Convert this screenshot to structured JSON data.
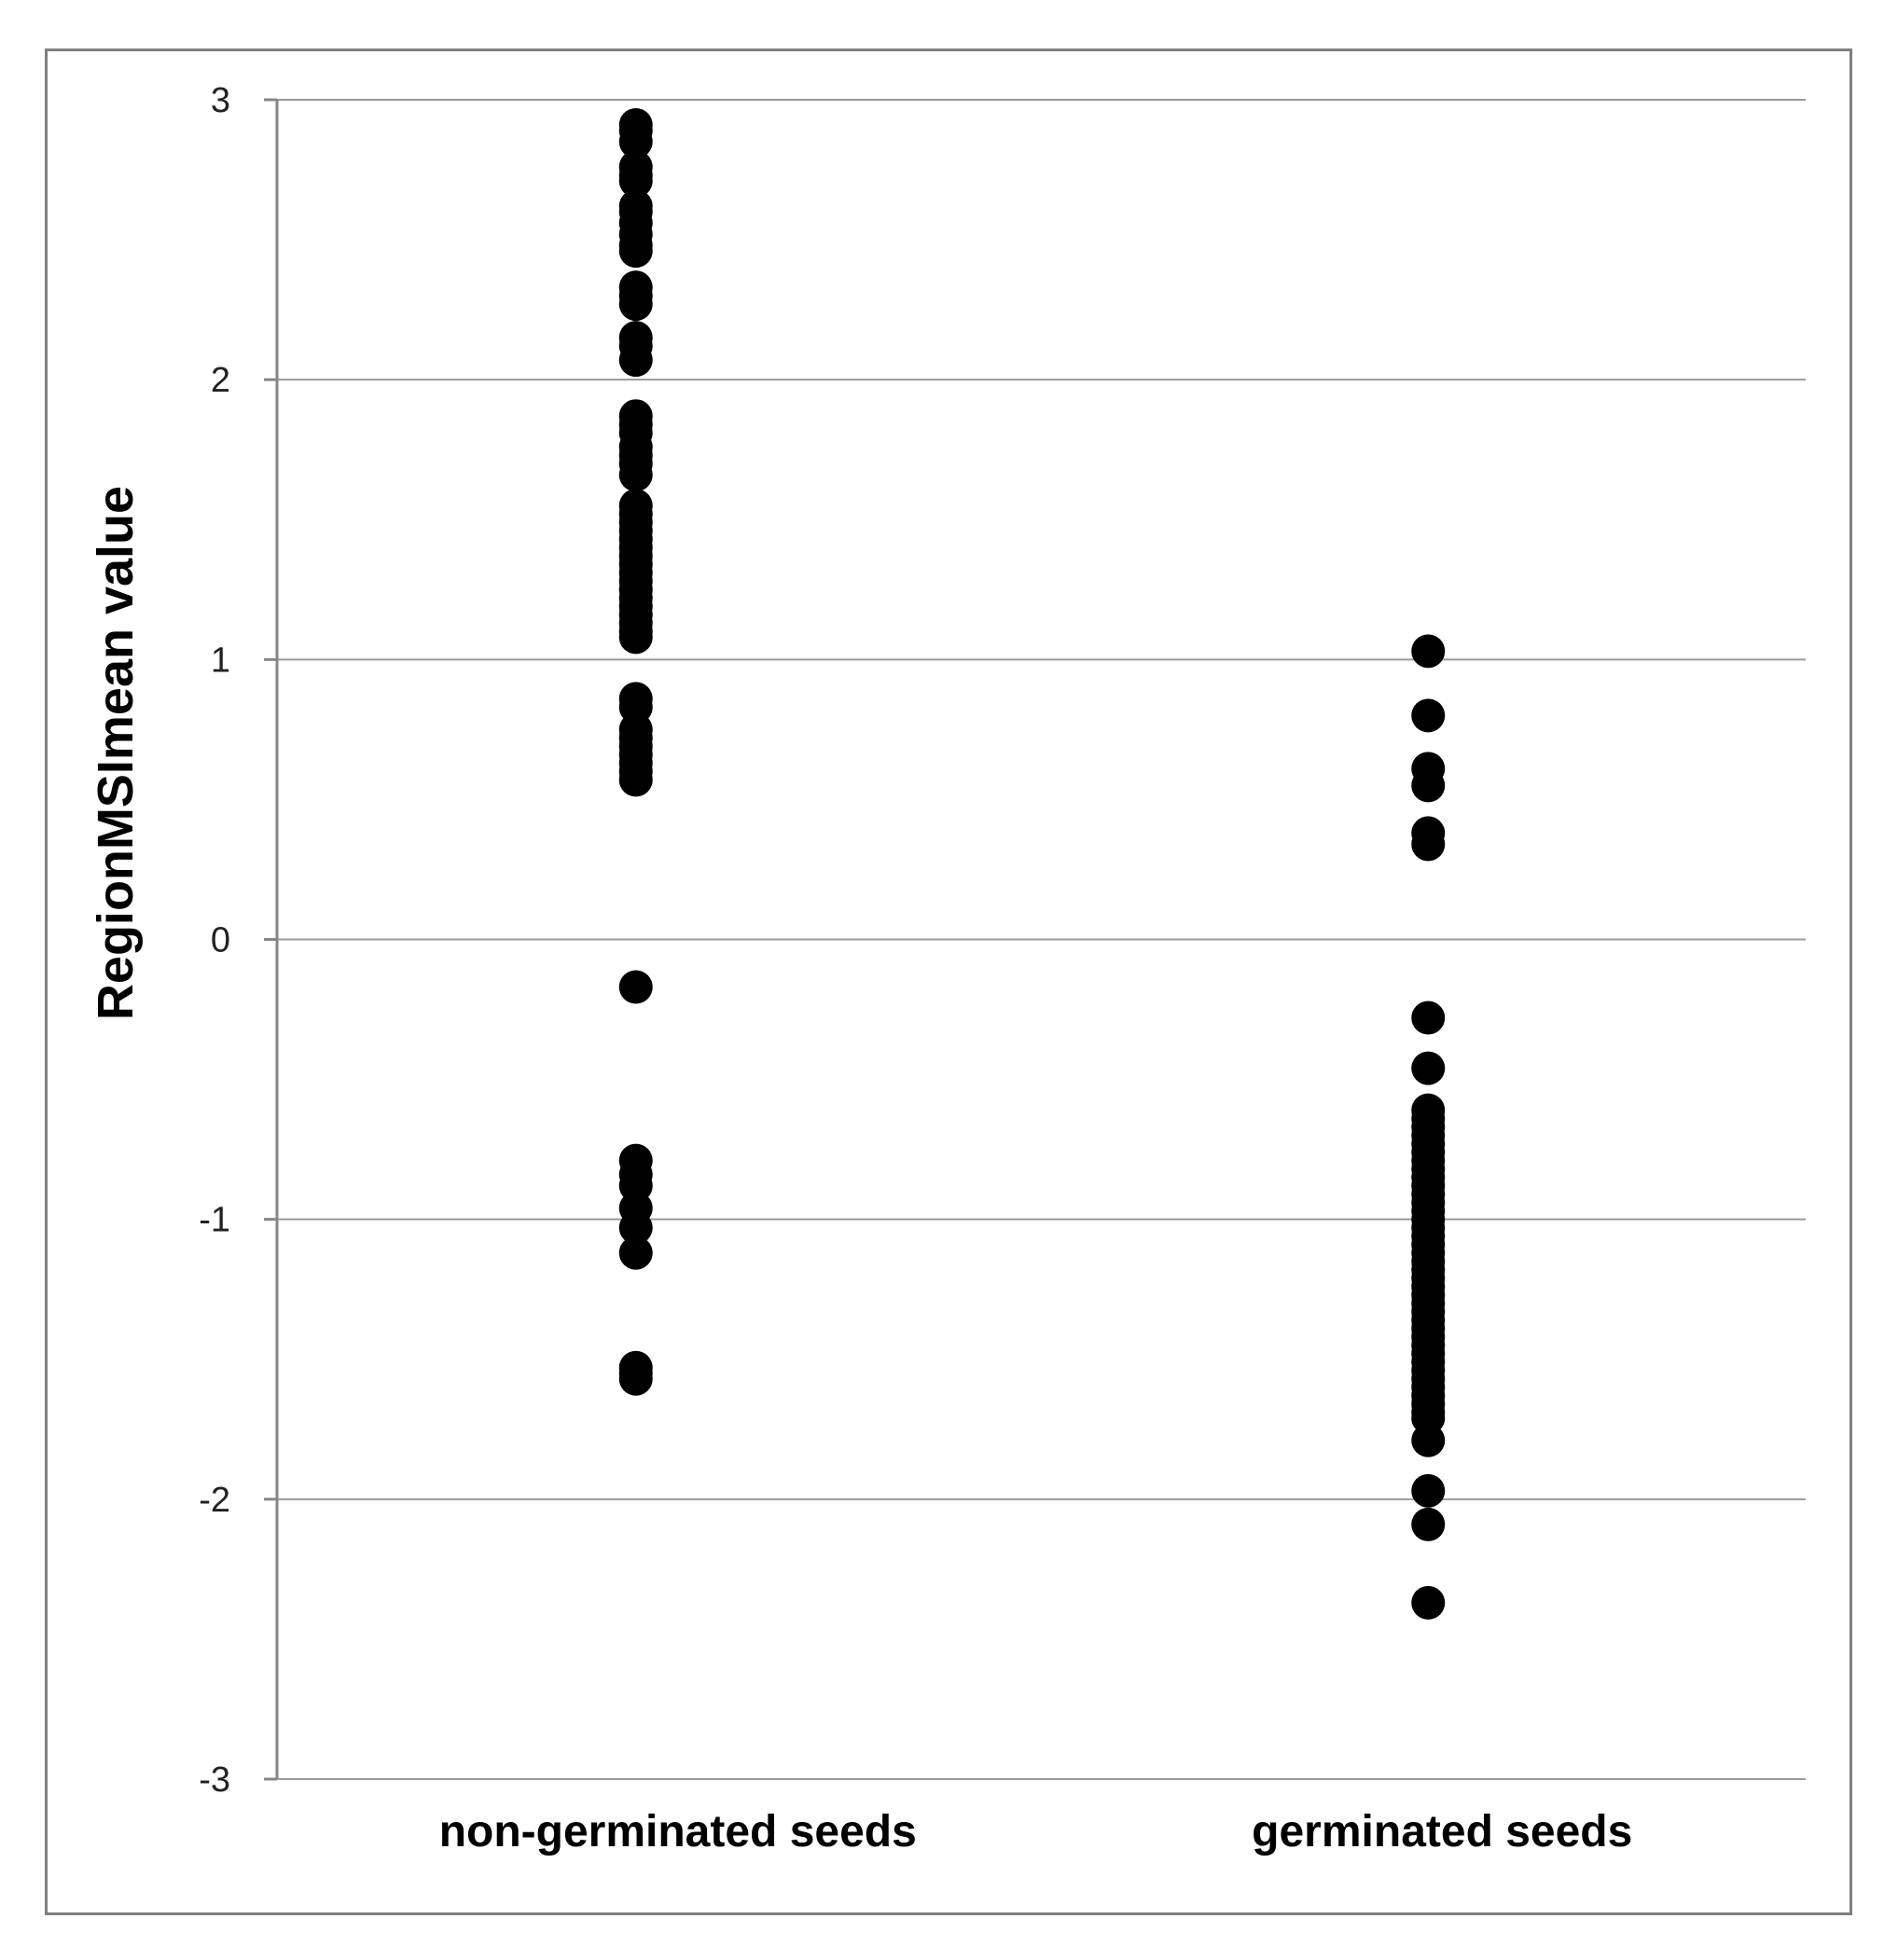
{
  "chart_data": {
    "type": "scatter",
    "title": "",
    "xlabel": "",
    "ylabel": "RegionMSImean value",
    "ylim": [
      -3,
      3
    ],
    "yticks": [
      3,
      2,
      1,
      0,
      -1,
      -2,
      -3
    ],
    "categories": [
      "non-germinated seeds",
      "germinated seeds"
    ],
    "grid": true,
    "legend": "none",
    "marker_color": "#000000",
    "series": [
      {
        "values": [
          [
            0,
            2.91
          ],
          [
            0,
            2.89
          ],
          [
            0,
            2.85
          ],
          [
            0,
            2.76
          ],
          [
            0,
            2.73
          ],
          [
            0,
            2.71
          ],
          [
            0,
            2.62
          ],
          [
            0,
            2.6
          ],
          [
            0,
            2.56
          ],
          [
            0,
            2.52
          ],
          [
            0,
            2.48
          ],
          [
            0,
            2.46
          ],
          [
            0,
            2.33
          ],
          [
            0,
            2.3
          ],
          [
            0,
            2.27
          ],
          [
            0,
            2.15
          ],
          [
            0,
            2.12
          ],
          [
            0,
            2.07
          ],
          [
            0,
            1.87
          ],
          [
            0,
            1.84
          ],
          [
            0,
            1.81
          ],
          [
            0,
            1.76
          ],
          [
            0,
            1.73
          ],
          [
            0,
            1.7
          ],
          [
            0,
            1.66
          ],
          [
            0,
            1.55
          ],
          [
            0,
            1.52
          ],
          [
            0,
            1.49
          ],
          [
            0,
            1.46
          ],
          [
            0,
            1.43
          ],
          [
            0,
            1.4
          ],
          [
            0,
            1.37
          ],
          [
            0,
            1.34
          ],
          [
            0,
            1.31
          ],
          [
            0,
            1.28
          ],
          [
            0,
            1.25
          ],
          [
            0,
            1.22
          ],
          [
            0,
            1.19
          ],
          [
            0,
            1.16
          ],
          [
            0,
            1.13
          ],
          [
            0,
            1.1
          ],
          [
            0,
            1.08
          ],
          [
            0,
            0.86
          ],
          [
            0,
            0.83
          ],
          [
            0,
            0.75
          ],
          [
            0,
            0.72
          ],
          [
            0,
            0.69
          ],
          [
            0,
            0.66
          ],
          [
            0,
            0.63
          ],
          [
            0,
            0.6
          ],
          [
            0,
            0.57
          ],
          [
            0,
            -0.17
          ],
          [
            0,
            -0.79
          ],
          [
            0,
            -0.84
          ],
          [
            0,
            -0.88
          ],
          [
            0,
            -0.96
          ],
          [
            0,
            -1.03
          ],
          [
            0,
            -1.12
          ],
          [
            0,
            -1.53
          ],
          [
            0,
            -1.55
          ],
          [
            0,
            -1.57
          ]
        ]
      },
      {
        "values": [
          [
            1,
            1.03
          ],
          [
            1,
            0.8
          ],
          [
            1,
            0.61
          ],
          [
            1,
            0.55
          ],
          [
            1,
            0.38
          ],
          [
            1,
            0.34
          ],
          [
            1,
            -0.28
          ],
          [
            1,
            -0.46
          ],
          [
            1,
            -0.61
          ],
          [
            1,
            -0.64
          ],
          [
            1,
            -0.67
          ],
          [
            1,
            -0.7
          ],
          [
            1,
            -0.73
          ],
          [
            1,
            -0.76
          ],
          [
            1,
            -0.79
          ],
          [
            1,
            -0.82
          ],
          [
            1,
            -0.85
          ],
          [
            1,
            -0.88
          ],
          [
            1,
            -0.91
          ],
          [
            1,
            -0.94
          ],
          [
            1,
            -0.97
          ],
          [
            1,
            -1.0
          ],
          [
            1,
            -1.03
          ],
          [
            1,
            -1.06
          ],
          [
            1,
            -1.09
          ],
          [
            1,
            -1.12
          ],
          [
            1,
            -1.15
          ],
          [
            1,
            -1.18
          ],
          [
            1,
            -1.21
          ],
          [
            1,
            -1.24
          ],
          [
            1,
            -1.27
          ],
          [
            1,
            -1.3
          ],
          [
            1,
            -1.33
          ],
          [
            1,
            -1.36
          ],
          [
            1,
            -1.39
          ],
          [
            1,
            -1.42
          ],
          [
            1,
            -1.45
          ],
          [
            1,
            -1.48
          ],
          [
            1,
            -1.51
          ],
          [
            1,
            -1.54
          ],
          [
            1,
            -1.57
          ],
          [
            1,
            -1.6
          ],
          [
            1,
            -1.63
          ],
          [
            1,
            -1.66
          ],
          [
            1,
            -1.69
          ],
          [
            1,
            -1.71
          ],
          [
            1,
            -1.79
          ],
          [
            1,
            -1.97
          ],
          [
            1,
            -2.09
          ],
          [
            1,
            -2.37
          ]
        ]
      }
    ]
  }
}
